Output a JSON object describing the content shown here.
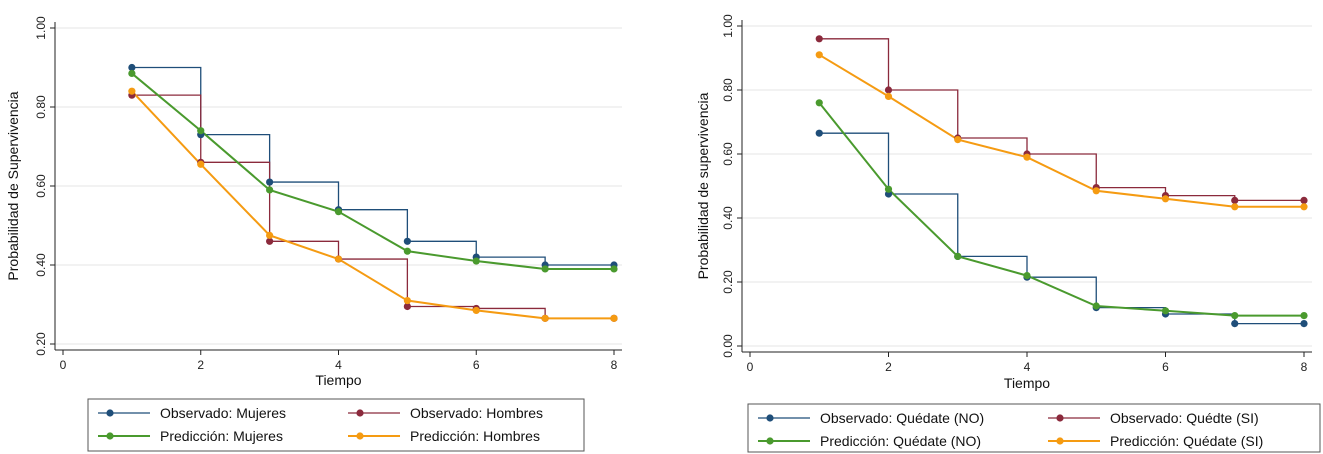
{
  "chart_data": [
    {
      "type": "line",
      "xlabel": "Tiempo",
      "ylabel": "Probabilidad de Supervivencia",
      "xlim": [
        0,
        8
      ],
      "ylim": [
        0.2,
        1.0
      ],
      "xticks": [
        "0",
        "2",
        "4",
        "6",
        "8"
      ],
      "yticks": [
        "0.20",
        "0.40",
        "0.60",
        "0.80",
        "1.00"
      ],
      "grid": true,
      "legend_position": "bottom",
      "series": [
        {
          "name": "Observado: Mujeres",
          "style": "step",
          "color": "#1f4e79",
          "x": [
            1,
            2,
            3,
            4,
            5,
            6,
            7,
            8
          ],
          "y": [
            0.9,
            0.73,
            0.61,
            0.54,
            0.46,
            0.42,
            0.4,
            0.4
          ]
        },
        {
          "name": "Observado: Hombres",
          "style": "step",
          "color": "#8b2a3c",
          "x": [
            1,
            2,
            3,
            4,
            5,
            6,
            7,
            8
          ],
          "y": [
            0.83,
            0.66,
            0.46,
            0.415,
            0.295,
            0.29,
            0.265,
            0.265
          ]
        },
        {
          "name": "Predicción: Mujeres",
          "style": "line",
          "color": "#4a9a2e",
          "x": [
            1,
            2,
            3,
            4,
            5,
            6,
            7,
            8
          ],
          "y": [
            0.885,
            0.74,
            0.59,
            0.535,
            0.435,
            0.41,
            0.39,
            0.39
          ]
        },
        {
          "name": "Predicción: Hombres",
          "style": "line",
          "color": "#f59b12",
          "x": [
            1,
            2,
            3,
            4,
            5,
            6,
            7,
            8
          ],
          "y": [
            0.84,
            0.655,
            0.475,
            0.415,
            0.31,
            0.285,
            0.265,
            0.265
          ]
        }
      ]
    },
    {
      "type": "line",
      "xlabel": "Tiempo",
      "ylabel": "Probabilidad de supervivencia",
      "xlim": [
        0,
        8
      ],
      "ylim": [
        0.0,
        1.0
      ],
      "xticks": [
        "0",
        "2",
        "4",
        "6",
        "8"
      ],
      "yticks": [
        "0.00",
        "0.20",
        "0.40",
        "0.60",
        "0.80",
        "1.00"
      ],
      "grid": true,
      "legend_position": "bottom",
      "series": [
        {
          "name": "Observado: Quédate (NO)",
          "style": "step",
          "color": "#1f4e79",
          "x": [
            1,
            2,
            3,
            4,
            5,
            6,
            7,
            8
          ],
          "y": [
            0.665,
            0.475,
            0.28,
            0.215,
            0.12,
            0.1,
            0.07,
            0.07
          ]
        },
        {
          "name": "Observado: Quédte (SI)",
          "style": "step",
          "color": "#8b2a3c",
          "x": [
            1,
            2,
            3,
            4,
            5,
            6,
            7,
            8
          ],
          "y": [
            0.96,
            0.8,
            0.65,
            0.6,
            0.495,
            0.47,
            0.455,
            0.455
          ]
        },
        {
          "name": "Predicción: Quédate (NO)",
          "style": "line",
          "color": "#4a9a2e",
          "x": [
            1,
            2,
            3,
            4,
            5,
            6,
            7,
            8
          ],
          "y": [
            0.76,
            0.49,
            0.28,
            0.22,
            0.125,
            0.11,
            0.095,
            0.095
          ]
        },
        {
          "name": "Predicción: Quédate (SI)",
          "style": "line",
          "color": "#f59b12",
          "x": [
            1,
            2,
            3,
            4,
            5,
            6,
            7,
            8
          ],
          "y": [
            0.91,
            0.78,
            0.645,
            0.59,
            0.485,
            0.46,
            0.435,
            0.435
          ]
        }
      ]
    }
  ]
}
